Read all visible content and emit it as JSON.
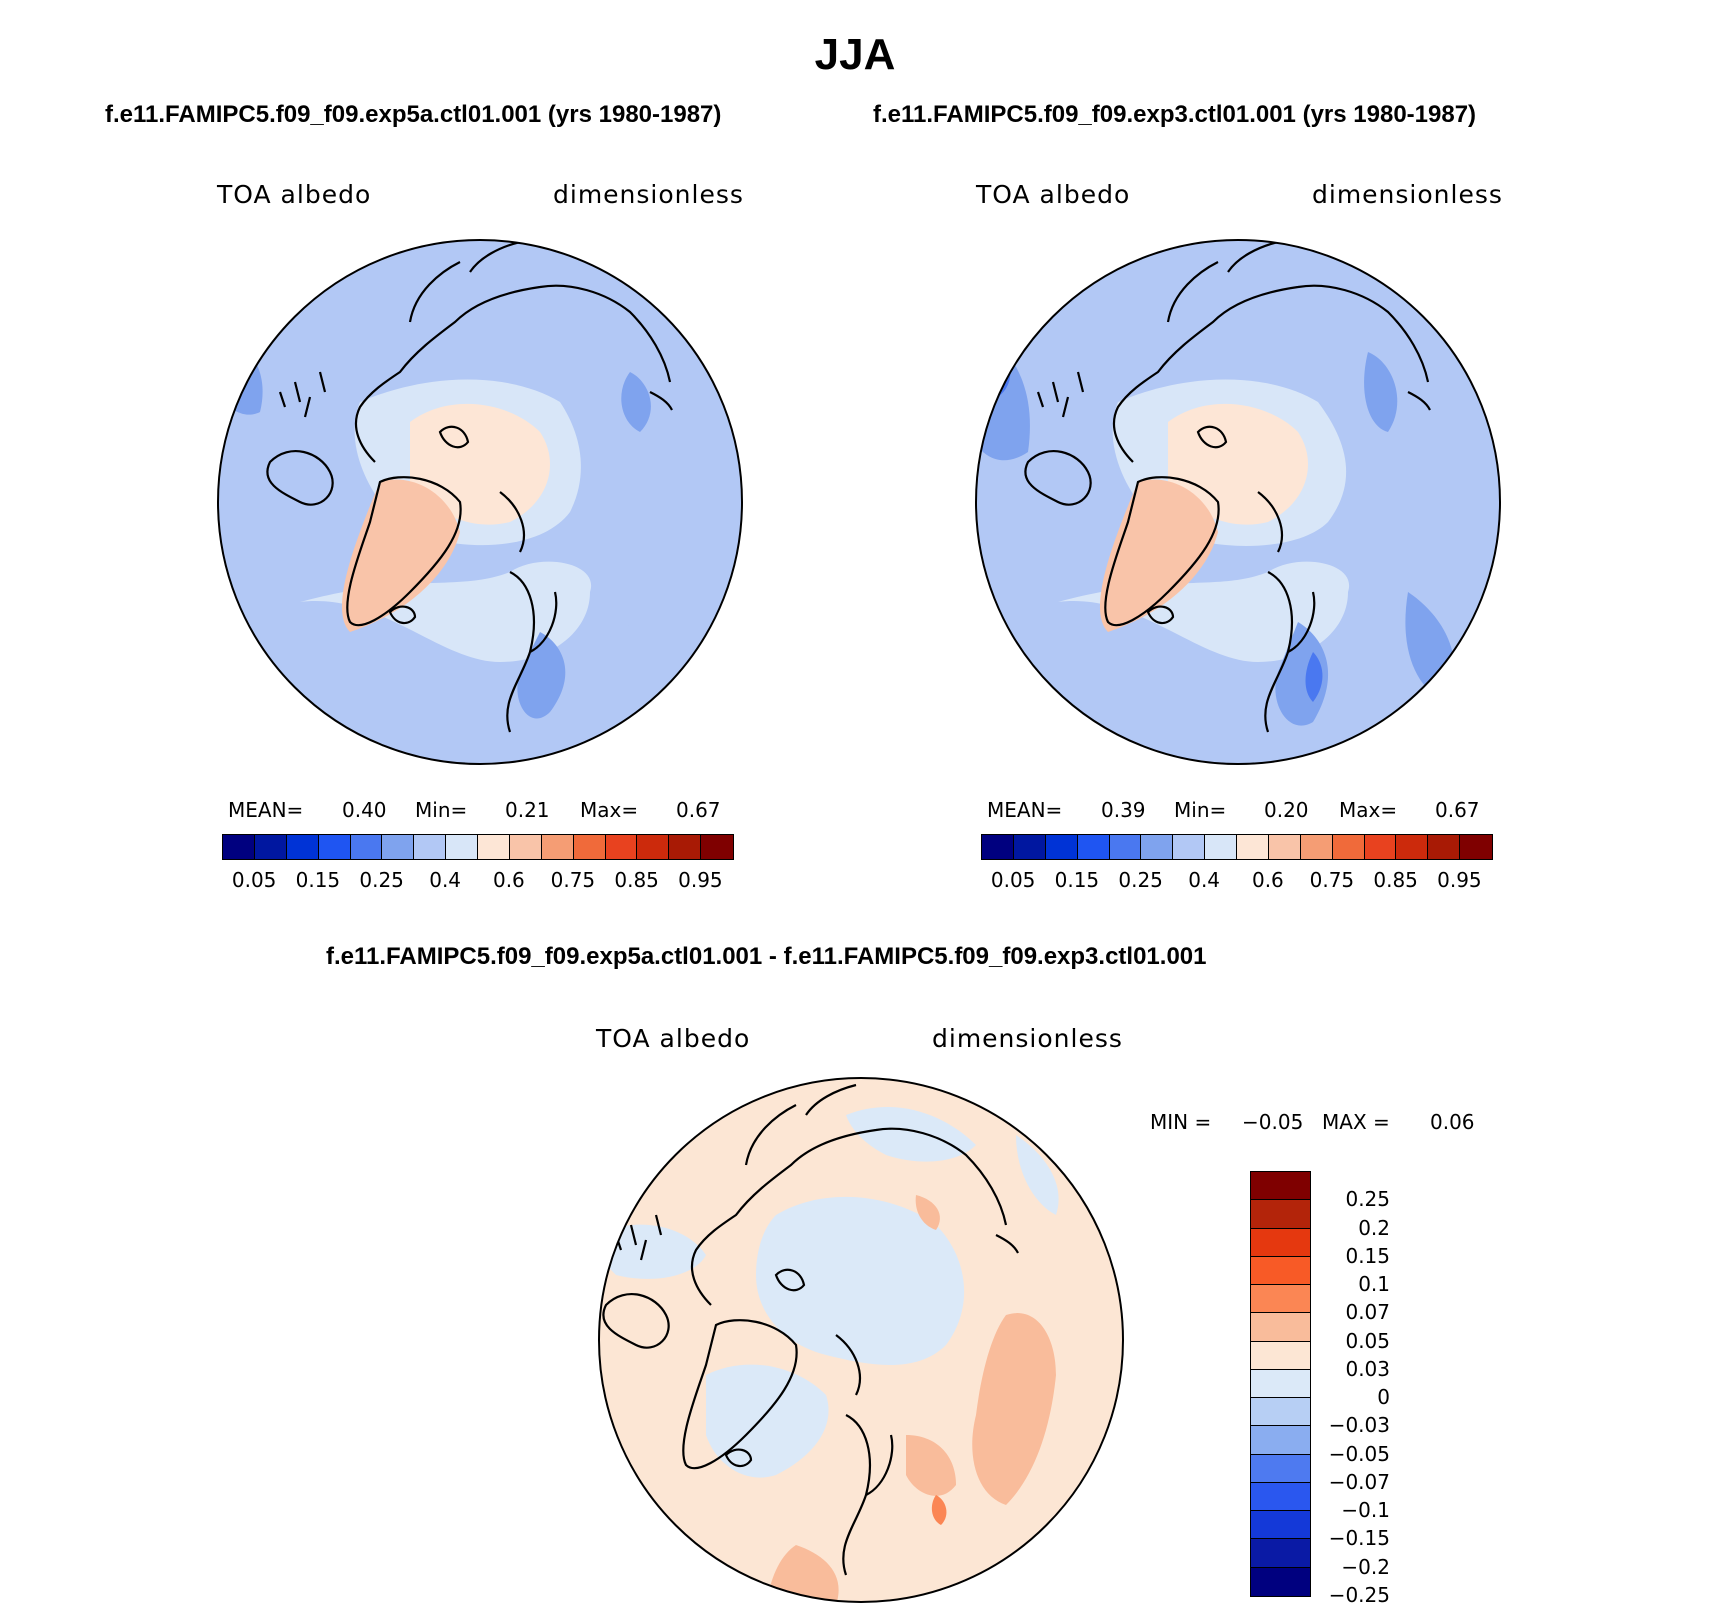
{
  "figure": {
    "title": "JJA",
    "panel_left": {
      "case": "f.e11.FAMIPC5.f09_f09.exp5a.ctl01.001 (yrs 1980-1987)",
      "variable": "TOA albedo",
      "units": "dimensionless",
      "mean_label": "MEAN=",
      "mean": "0.40",
      "min_label": "Min=",
      "min": "0.21",
      "max_label": "Max=",
      "max": "0.67"
    },
    "panel_right": {
      "case": "f.e11.FAMIPC5.f09_f09.exp3.ctl01.001 (yrs 1980-1987)",
      "variable": "TOA albedo",
      "units": "dimensionless",
      "mean_label": "MEAN=",
      "mean": "0.39",
      "min_label": "Min=",
      "min": "0.20",
      "max_label": "Max=",
      "max": "0.67"
    },
    "panel_diff": {
      "case": "f.e11.FAMIPC5.f09_f09.exp5a.ctl01.001 - f.e11.FAMIPC5.f09_f09.exp3.ctl01.001",
      "variable": "TOA albedo",
      "units": "dimensionless",
      "min_label": "MIN =",
      "min": "−0.05",
      "max_label": "MAX =",
      "max": "0.06"
    },
    "colorbar_abs": {
      "colors": [
        "#00007f",
        "#0017a0",
        "#0033d6",
        "#1f55f2",
        "#4a78f0",
        "#7fa3ee",
        "#b2c8f5",
        "#d8e6f8",
        "#fde6d6",
        "#f9c4a9",
        "#f59d74",
        "#f06a3a",
        "#e8421f",
        "#cc2a0c",
        "#a81a05",
        "#7f0000"
      ],
      "tick_labels": [
        "0.05",
        "0.15",
        "0.25",
        "0.4",
        "0.6",
        "0.75",
        "0.85",
        "0.95"
      ]
    },
    "colorbar_diff": {
      "colors": [
        "#7f0000",
        "#b3240a",
        "#e5380f",
        "#f85a26",
        "#fb8654",
        "#f9bc9b",
        "#fce6d4",
        "#dbe9f8",
        "#b7cff4",
        "#8aadf0",
        "#4e7af0",
        "#2a57ef",
        "#1439d8",
        "#0a1aa5",
        "#00007f"
      ],
      "tick_labels": [
        "0.25",
        "0.2",
        "0.15",
        "0.1",
        "0.07",
        "0.05",
        "0.03",
        "0",
        "−0.03",
        "−0.05",
        "−0.07",
        "−0.1",
        "−0.15",
        "−0.2",
        "−0.25"
      ]
    }
  }
}
